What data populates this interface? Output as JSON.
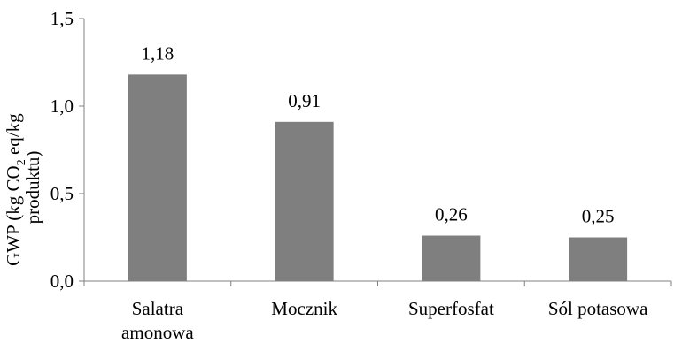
{
  "chart_data": {
    "type": "bar",
    "categories": [
      "Salatra amonowa",
      "Mocznik",
      "Superfosfat",
      "Sól potasowa"
    ],
    "category_lines": [
      [
        "Salatra",
        "amonowa"
      ],
      [
        "Mocznik"
      ],
      [
        "Superfosfat"
      ],
      [
        "Sól potasowa"
      ]
    ],
    "values": [
      1.18,
      0.91,
      0.26,
      0.25
    ],
    "data_labels": [
      "1,18",
      "0,91",
      "0,26",
      "0,25"
    ],
    "ylim": [
      0,
      1.5
    ],
    "yticks": [
      0,
      0.5,
      1.0,
      1.5
    ],
    "ytick_labels": [
      "0,0",
      "0,5",
      "1,0",
      "1,5"
    ],
    "ylabel": {
      "line1_pre": "GWP (kg CO",
      "line1_sub": "2",
      "line1_post": " eq/kg",
      "line2": "produktu)"
    },
    "xlabel": "",
    "bar_color": "#7f7f7f",
    "axis_color": "#808080",
    "grid": false
  }
}
